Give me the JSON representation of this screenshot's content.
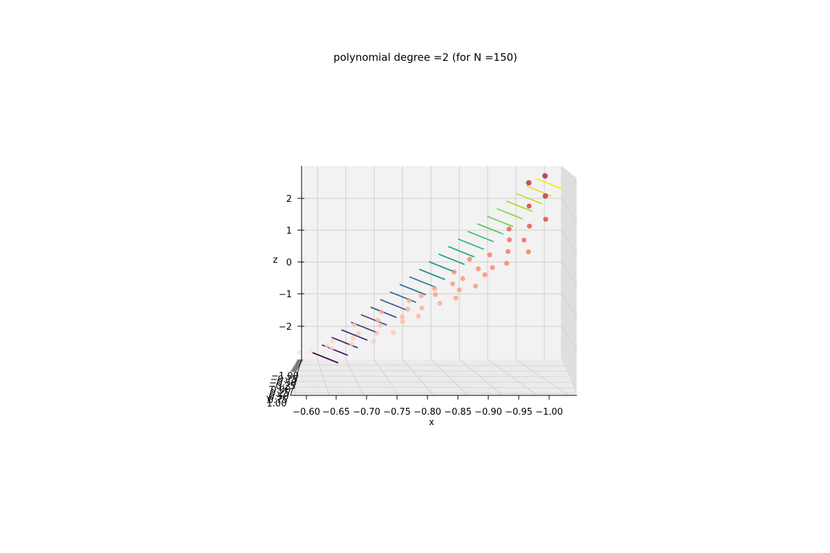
{
  "chart_data": {
    "type": "scatter3d",
    "title": "polynomial degree =2 (for N =150)",
    "xlabel": "x",
    "ylabel": "y",
    "zlabel": "z",
    "xlim": [
      -0.6,
      -1.0
    ],
    "ylim": [
      -1.0,
      1.0
    ],
    "zlim": [
      -3,
      3
    ],
    "x_ticks": [
      "−0.60",
      "−0.65",
      "−0.70",
      "−0.75",
      "−0.80",
      "−0.85",
      "−0.90",
      "−0.95",
      "−1.00"
    ],
    "y_ticks": [
      "−1.00",
      "−0.75",
      "−0.50",
      "−0.25",
      "0.00",
      "0.25",
      "0.50",
      "0.75",
      "1.00"
    ],
    "z_ticks": [
      "2",
      "1",
      "0",
      "−1",
      "−2"
    ],
    "grid": true,
    "surface": {
      "kind": "contour",
      "colormap": "viridis",
      "levels": 24
    },
    "scatter": {
      "colormap": "Reds",
      "points": [
        [
          -0.61,
          -0.8,
          -2.9
        ],
        [
          -0.62,
          -0.5,
          -2.8
        ],
        [
          -0.63,
          0.2,
          -2.6
        ],
        [
          -0.64,
          -0.3,
          -2.6
        ],
        [
          -0.65,
          0.6,
          -2.4
        ],
        [
          -0.66,
          -0.6,
          -2.5
        ],
        [
          -0.67,
          0.1,
          -2.3
        ],
        [
          -0.68,
          0.8,
          -2.3
        ],
        [
          -0.69,
          -0.2,
          -2.2
        ],
        [
          -0.7,
          0.4,
          -2.1
        ],
        [
          -0.7,
          -0.7,
          -2.0
        ],
        [
          -0.71,
          0.9,
          -2.0
        ],
        [
          -0.72,
          0.0,
          -1.9
        ],
        [
          -0.73,
          -0.4,
          -1.8
        ],
        [
          -0.74,
          0.5,
          -1.7
        ],
        [
          -0.75,
          -0.8,
          -1.6
        ],
        [
          -0.75,
          0.2,
          -1.6
        ],
        [
          -0.76,
          0.7,
          -1.5
        ],
        [
          -0.77,
          -0.1,
          -1.4
        ],
        [
          -0.78,
          0.3,
          -1.3
        ],
        [
          -0.79,
          -0.6,
          -1.2
        ],
        [
          -0.8,
          0.6,
          -1.1
        ],
        [
          -0.8,
          -0.3,
          -1.0
        ],
        [
          -0.81,
          0.1,
          -0.9
        ],
        [
          -0.82,
          0.8,
          -0.9
        ],
        [
          -0.83,
          -0.5,
          -0.8
        ],
        [
          -0.84,
          0.4,
          -0.7
        ],
        [
          -0.85,
          -0.2,
          -0.6
        ],
        [
          -0.85,
          0.9,
          -0.5
        ],
        [
          -0.86,
          0.0,
          -0.4
        ],
        [
          -0.87,
          -0.7,
          -0.3
        ],
        [
          -0.88,
          0.5,
          -0.2
        ],
        [
          -0.89,
          -0.1,
          -0.1
        ],
        [
          -0.9,
          0.3,
          0.0
        ],
        [
          -0.9,
          -0.8,
          0.1
        ],
        [
          -0.91,
          0.7,
          0.2
        ],
        [
          -0.92,
          -0.4,
          0.3
        ],
        [
          -0.93,
          0.2,
          0.5
        ],
        [
          -0.94,
          0.9,
          0.6
        ],
        [
          -0.95,
          -0.3,
          0.8
        ],
        [
          -0.95,
          0.4,
          0.9
        ],
        [
          -0.96,
          -0.6,
          1.1
        ],
        [
          -0.97,
          0.1,
          1.3
        ],
        [
          -0.98,
          0.6,
          1.6
        ],
        [
          -0.98,
          -0.2,
          1.9
        ],
        [
          -0.99,
          0.3,
          2.3
        ],
        [
          -0.99,
          -0.5,
          2.6
        ],
        [
          -1.0,
          0.0,
          2.9
        ]
      ]
    }
  }
}
